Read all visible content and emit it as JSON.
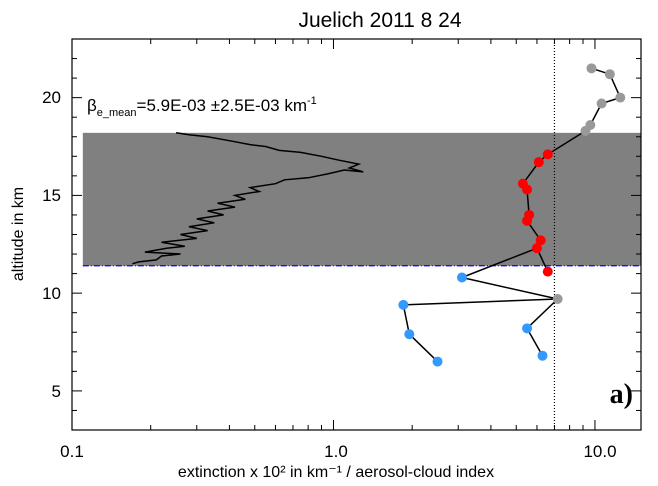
{
  "chart_data": {
    "type": "line",
    "title": "Juelich 2011  8 24",
    "xlabel": "extinction x 10² in km⁻¹ / aerosol-cloud index",
    "ylabel": "altitude in km",
    "xscale": "log",
    "xlim": [
      0.1,
      15
    ],
    "ylim": [
      3,
      23
    ],
    "xticks": [
      "0.1",
      "1.0",
      "10.0"
    ],
    "yticks": [
      "5",
      "10",
      "15",
      "20"
    ],
    "annotation": {
      "beta": "β",
      "sub": "e_mean",
      "main": "=5.9E-03 ±2.5E-03 km",
      "sup": "-1"
    },
    "panel_label": "a)",
    "cloud_layer": {
      "bottom_km": 11.4,
      "top_km": 18.2,
      "x_range": [
        0.11,
        15
      ],
      "color": "#808080"
    },
    "tropopause_line": {
      "altitude_km": 11.4,
      "color": "#0000ff",
      "style": "dash-dot"
    },
    "threshold_line": {
      "x": 7.0,
      "style": "dotted",
      "color": "#000000"
    },
    "extinction_profile": {
      "color": "#000000",
      "points": [
        [
          0.17,
          11.5
        ],
        [
          0.18,
          11.6
        ],
        [
          0.21,
          11.7
        ],
        [
          0.22,
          11.9
        ],
        [
          0.26,
          12.0
        ],
        [
          0.19,
          12.1
        ],
        [
          0.23,
          12.3
        ],
        [
          0.27,
          12.4
        ],
        [
          0.22,
          12.6
        ],
        [
          0.3,
          12.8
        ],
        [
          0.26,
          13.0
        ],
        [
          0.33,
          13.2
        ],
        [
          0.28,
          13.4
        ],
        [
          0.35,
          13.6
        ],
        [
          0.3,
          13.8
        ],
        [
          0.38,
          14.0
        ],
        [
          0.33,
          14.2
        ],
        [
          0.42,
          14.4
        ],
        [
          0.36,
          14.6
        ],
        [
          0.46,
          14.8
        ],
        [
          0.42,
          15.0
        ],
        [
          0.52,
          15.2
        ],
        [
          0.48,
          15.4
        ],
        [
          0.6,
          15.6
        ],
        [
          0.65,
          15.8
        ],
        [
          0.8,
          15.9
        ],
        [
          0.95,
          16.1
        ],
        [
          1.1,
          16.3
        ],
        [
          1.3,
          16.2
        ],
        [
          1.15,
          16.4
        ],
        [
          1.25,
          16.6
        ],
        [
          1.05,
          16.8
        ],
        [
          0.9,
          17.0
        ],
        [
          0.75,
          17.2
        ],
        [
          0.62,
          17.3
        ],
        [
          0.55,
          17.5
        ],
        [
          0.48,
          17.6
        ],
        [
          0.4,
          17.8
        ],
        [
          0.33,
          18.0
        ],
        [
          0.28,
          18.1
        ],
        [
          0.25,
          18.2
        ]
      ]
    },
    "index_profile": {
      "color": "#000000",
      "points": [
        {
          "x": 9.7,
          "y": 21.5,
          "c": "gray"
        },
        {
          "x": 11.4,
          "y": 21.2,
          "c": "gray"
        },
        {
          "x": 12.5,
          "y": 20.0,
          "c": "gray"
        },
        {
          "x": 10.6,
          "y": 19.7,
          "c": "gray"
        },
        {
          "x": 9.6,
          "y": 18.6,
          "c": "gray"
        },
        {
          "x": 9.2,
          "y": 18.3,
          "c": "gray"
        },
        {
          "x": 6.6,
          "y": 17.1,
          "c": "red"
        },
        {
          "x": 6.1,
          "y": 16.7,
          "c": "red"
        },
        {
          "x": 5.3,
          "y": 15.6,
          "c": "red"
        },
        {
          "x": 5.5,
          "y": 15.3,
          "c": "red"
        },
        {
          "x": 5.6,
          "y": 14.0,
          "c": "red"
        },
        {
          "x": 5.5,
          "y": 13.7,
          "c": "red"
        },
        {
          "x": 6.2,
          "y": 12.7,
          "c": "red"
        },
        {
          "x": 6.0,
          "y": 12.3,
          "c": "red"
        },
        {
          "x": 6.6,
          "y": 11.1,
          "c": "red"
        },
        {
          "x": 3.1,
          "y": 10.8,
          "c": "blue"
        },
        {
          "x": 7.2,
          "y": 9.7,
          "c": "gray"
        },
        {
          "x": 1.85,
          "y": 9.4,
          "c": "blue"
        },
        {
          "x": 1.95,
          "y": 7.9,
          "c": "blue"
        },
        {
          "x": 2.5,
          "y": 6.5,
          "c": "blue"
        },
        {
          "x": 5.5,
          "y": 8.2,
          "c": "blue"
        },
        {
          "x": 6.3,
          "y": 6.8,
          "c": "blue"
        }
      ],
      "segments": [
        [
          0,
          1
        ],
        [
          1,
          2
        ],
        [
          2,
          3
        ],
        [
          3,
          4
        ],
        [
          4,
          5
        ],
        [
          5,
          6
        ],
        [
          6,
          7
        ],
        [
          7,
          8
        ],
        [
          8,
          9
        ],
        [
          9,
          10
        ],
        [
          10,
          11
        ],
        [
          11,
          12
        ],
        [
          12,
          13
        ],
        [
          13,
          14
        ],
        [
          13,
          15
        ],
        [
          15,
          16
        ],
        [
          16,
          17
        ],
        [
          17,
          18
        ],
        [
          18,
          19
        ],
        [
          16,
          20
        ],
        [
          20,
          21
        ]
      ]
    },
    "marker_colors": {
      "gray": "#999999",
      "red": "#ff0000",
      "blue": "#3399ff"
    },
    "grid": false,
    "legend": "none"
  }
}
